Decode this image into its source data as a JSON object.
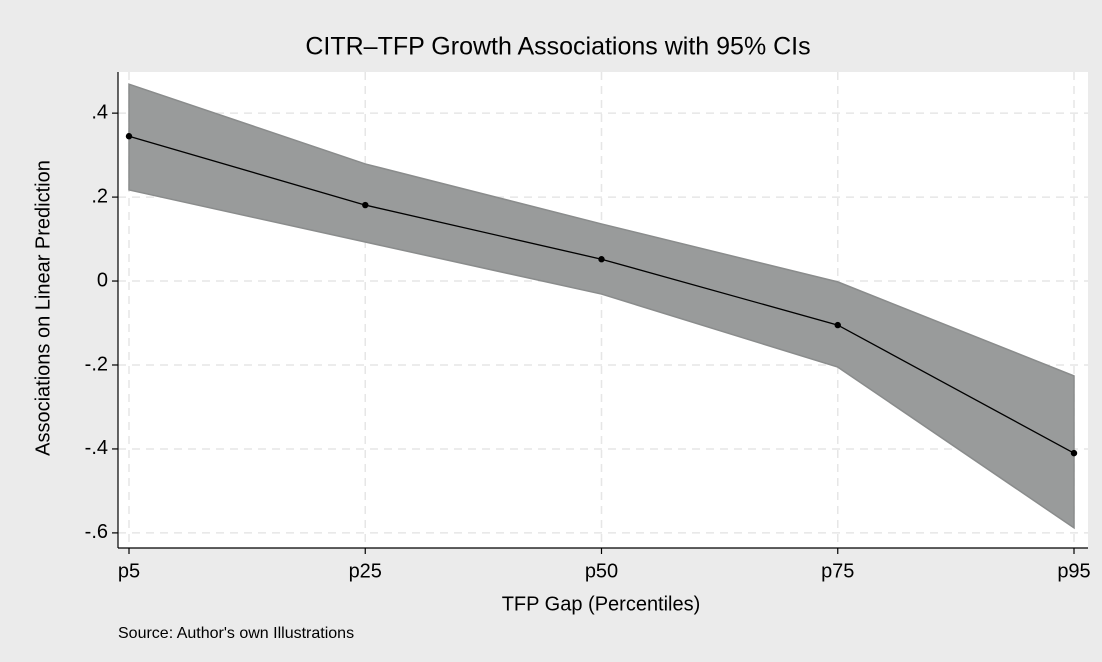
{
  "chart_data": {
    "type": "line",
    "title": "CITR–TFP Growth Associations with 95% CIs",
    "x_label": "TFP Gap (Percentiles)",
    "y_label": "Associations on Linear Prediction",
    "note": "Source: Author's own Illustrations",
    "categories": [
      "p5",
      "p25",
      "p50",
      "p75",
      "p95"
    ],
    "values": [
      0.345,
      0.181,
      0.052,
      -0.105,
      -0.41
    ],
    "ci_upper": [
      0.469,
      0.279,
      0.136,
      -0.002,
      -0.226
    ],
    "ci_lower": [
      0.217,
      0.093,
      -0.031,
      -0.205,
      -0.588
    ],
    "color": "#000000",
    "band_color": "#999b9b",
    "ylim": [
      -0.636,
      0.498
    ],
    "yticks": [
      {
        "value": 0.4,
        "label": ".4"
      },
      {
        "value": 0.2,
        "label": ".2"
      },
      0,
      {
        "value": -0.2,
        "label": "-.2"
      },
      {
        "value": -0.4,
        "label": "-.4"
      },
      {
        "value": -0.6,
        "label": "-.6"
      }
    ],
    "grid": true
  }
}
